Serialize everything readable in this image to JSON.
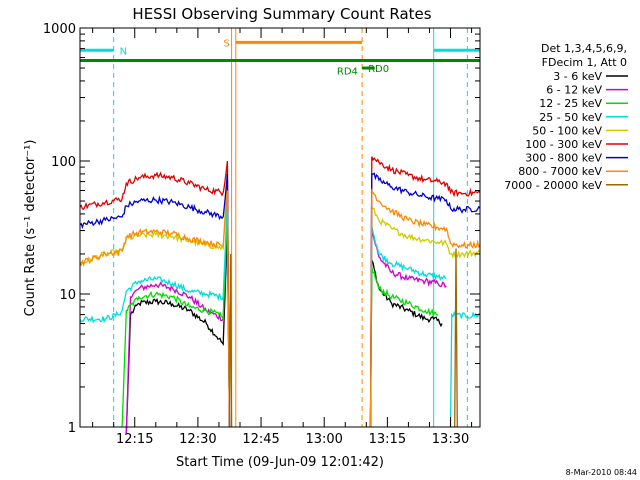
{
  "chart_data": {
    "type": "line",
    "title": "HESSI Observing Summary Count Rates",
    "xlabel": "Start Time (09-Jun-09 12:01:42)",
    "ylabel": "Count Rate (s⁻¹ detector⁻¹)",
    "xlim": [
      "12:02",
      "13:37"
    ],
    "x_ticks": [
      "12:15",
      "12:30",
      "12:45",
      "13:00",
      "13:15",
      "13:30"
    ],
    "ylim": [
      1,
      1000
    ],
    "y_scale": "log",
    "y_ticks": [
      "1",
      "10",
      "100",
      "1000"
    ],
    "legend_header": [
      "Det 1,3,4,5,6,9,",
      "FDecim 1, Att 0"
    ],
    "legend_position": "right",
    "timestamp": "8-Mar-2010 08:44",
    "series": [
      {
        "name": "3 - 6 keV",
        "color": "#000000",
        "segments": [
          [
            [
              "12:13",
              0.9
            ],
            [
              "12:14",
              7
            ],
            [
              "12:16",
              8.5
            ],
            [
              "12:20",
              8.8
            ],
            [
              "12:24",
              8.4
            ],
            [
              "12:28",
              7.5
            ],
            [
              "12:32",
              6
            ],
            [
              "12:35",
              4.6
            ],
            [
              "12:36",
              4.2
            ],
            [
              "12:37",
              30
            ],
            [
              "12:37.5",
              1
            ]
          ],
          [
            [
              "13:11",
              1
            ],
            [
              "13:11.3",
              18
            ],
            [
              "13:13",
              11
            ],
            [
              "13:16",
              8.5
            ],
            [
              "13:20",
              7.5
            ],
            [
              "13:24",
              6.5
            ],
            [
              "13:26",
              6.5
            ],
            [
              "13:28",
              6
            ]
          ]
        ]
      },
      {
        "name": "6 - 12 keV",
        "color": "#cc00cc",
        "segments": [
          [
            [
              "12:13",
              0.9
            ],
            [
              "12:14",
              9.5
            ],
            [
              "12:16",
              11
            ],
            [
              "12:20",
              11.8
            ],
            [
              "12:24",
              11
            ],
            [
              "12:28",
              9.5
            ],
            [
              "12:32",
              7.5
            ],
            [
              "12:36",
              6.5
            ],
            [
              "12:37",
              45
            ],
            [
              "12:37.5",
              1
            ]
          ],
          [
            [
              "13:11",
              1
            ],
            [
              "13:11.3",
              30
            ],
            [
              "13:13",
              19
            ],
            [
              "13:16",
              14.5
            ],
            [
              "13:20",
              13
            ],
            [
              "13:24",
              12.5
            ],
            [
              "13:27",
              12
            ],
            [
              "13:29",
              11.5
            ]
          ]
        ]
      },
      {
        "name": "12 - 25 keV",
        "color": "#00dd00",
        "segments": [
          [
            [
              "12:12",
              1
            ],
            [
              "12:13",
              7.5
            ],
            [
              "12:16",
              9.5
            ],
            [
              "12:20",
              10
            ],
            [
              "12:24",
              9.5
            ],
            [
              "12:28",
              8
            ],
            [
              "12:32",
              7.5
            ],
            [
              "12:35",
              7
            ],
            [
              "12:36",
              6.5
            ],
            [
              "12:37",
              40
            ],
            [
              "12:37.5",
              1
            ]
          ],
          [
            [
              "13:11",
              1
            ],
            [
              "13:11.3",
              16
            ],
            [
              "13:13",
              11
            ],
            [
              "13:16",
              9.5
            ],
            [
              "13:20",
              8.5
            ],
            [
              "13:24",
              7.5
            ],
            [
              "13:27",
              7
            ]
          ]
        ]
      },
      {
        "name": "25 - 50 keV",
        "color": "#00dddd",
        "segments": [
          [
            [
              "12:02",
              6.5
            ],
            [
              "12:08",
              6.5
            ],
            [
              "12:11",
              7
            ],
            [
              "12:12",
              7.5
            ],
            [
              "12:13",
              10.5
            ],
            [
              "12:16",
              12.5
            ],
            [
              "12:20",
              13
            ],
            [
              "12:24",
              12
            ],
            [
              "12:28",
              10.5
            ],
            [
              "12:32",
              10
            ],
            [
              "12:36",
              9.5
            ],
            [
              "12:37",
              50
            ],
            [
              "12:37.5",
              1
            ]
          ],
          [
            [
              "13:11",
              1
            ],
            [
              "13:11.3",
              32
            ],
            [
              "13:13",
              20
            ],
            [
              "13:16",
              17
            ],
            [
              "13:20",
              15.5
            ],
            [
              "13:24",
              14
            ],
            [
              "13:27",
              13.5
            ],
            [
              "13:29",
              13
            ]
          ],
          [
            [
              "13:30",
              1
            ],
            [
              "13:30.3",
              7
            ],
            [
              "13:34",
              6.8
            ],
            [
              "13:37",
              7
            ]
          ]
        ]
      },
      {
        "name": "50 - 100 keV",
        "color": "#cccc00",
        "segments": [
          [
            [
              "12:02",
              17
            ],
            [
              "12:08",
              20
            ],
            [
              "12:12",
              21
            ],
            [
              "12:13",
              26
            ],
            [
              "12:16",
              27.5
            ],
            [
              "12:20",
              28
            ],
            [
              "12:24",
              27
            ],
            [
              "12:28",
              25
            ],
            [
              "12:32",
              23.5
            ],
            [
              "12:36",
              22
            ],
            [
              "12:37",
              80
            ],
            [
              "12:37.5",
              1
            ]
          ],
          [
            [
              "13:11",
              1
            ],
            [
              "13:11.3",
              45
            ],
            [
              "13:13",
              36
            ],
            [
              "13:16",
              31
            ],
            [
              "13:20",
              27
            ],
            [
              "13:24",
              25.5
            ],
            [
              "13:27",
              24.5
            ],
            [
              "13:29",
              24
            ],
            [
              "13:30",
              20
            ],
            [
              "13:33",
              20
            ],
            [
              "13:37",
              20.5
            ]
          ]
        ]
      },
      {
        "name": "100 - 300 keV",
        "color": "#dd0000",
        "segments": [
          [
            [
              "12:02",
              45
            ],
            [
              "12:08",
              49
            ],
            [
              "12:12",
              52
            ],
            [
              "12:13",
              68
            ],
            [
              "12:16",
              75
            ],
            [
              "12:20",
              78
            ],
            [
              "12:24",
              75
            ],
            [
              "12:28",
              68
            ],
            [
              "12:32",
              61
            ],
            [
              "12:36",
              58
            ],
            [
              "12:37",
              100
            ],
            [
              "12:37.5",
              1
            ]
          ],
          [
            [
              "13:11",
              1
            ],
            [
              "13:11.3",
              108
            ],
            [
              "13:13",
              98
            ],
            [
              "13:16",
              86
            ],
            [
              "13:20",
              78
            ],
            [
              "13:24",
              72
            ],
            [
              "13:27",
              70
            ],
            [
              "13:29",
              68
            ],
            [
              "13:30",
              58
            ],
            [
              "13:33",
              57
            ],
            [
              "13:37",
              58
            ]
          ]
        ]
      },
      {
        "name": "300 - 800 keV",
        "color": "#0000cc",
        "segments": [
          [
            [
              "12:02",
              33
            ],
            [
              "12:08",
              36
            ],
            [
              "12:12",
              38
            ],
            [
              "12:13",
              46
            ],
            [
              "12:16",
              50
            ],
            [
              "12:20",
              51
            ],
            [
              "12:24",
              49
            ],
            [
              "12:28",
              45
            ],
            [
              "12:32",
              41
            ],
            [
              "12:36",
              38
            ],
            [
              "12:37",
              80
            ],
            [
              "12:37.5",
              1
            ]
          ],
          [
            [
              "13:11",
              1
            ],
            [
              "13:11.3",
              80
            ],
            [
              "13:13",
              72
            ],
            [
              "13:16",
              64
            ],
            [
              "13:20",
              58
            ],
            [
              "13:24",
              54
            ],
            [
              "13:27",
              52
            ],
            [
              "13:29",
              51
            ],
            [
              "13:30",
              44
            ],
            [
              "13:33",
              43
            ],
            [
              "13:37",
              44
            ]
          ]
        ]
      },
      {
        "name": "800 - 7000 keV",
        "color": "#ff8800",
        "segments": [
          [
            [
              "12:02",
              17
            ],
            [
              "12:08",
              20
            ],
            [
              "12:12",
              21
            ],
            [
              "12:13",
              27
            ],
            [
              "12:16",
              29
            ],
            [
              "12:20",
              29.5
            ],
            [
              "12:24",
              28.5
            ],
            [
              "12:28",
              26
            ],
            [
              "12:32",
              24.5
            ],
            [
              "12:36",
              23
            ],
            [
              "12:37",
              60
            ],
            [
              "12:37.5",
              1
            ]
          ],
          [
            [
              "13:11",
              1
            ],
            [
              "13:11.3",
              60
            ],
            [
              "13:13",
              50
            ],
            [
              "13:16",
              42
            ],
            [
              "13:20",
              36
            ],
            [
              "13:24",
              33
            ],
            [
              "13:27",
              31.5
            ],
            [
              "13:29",
              31
            ],
            [
              "13:30",
              24
            ],
            [
              "13:33",
              23
            ],
            [
              "13:37",
              23.5
            ]
          ]
        ]
      },
      {
        "name": "7000 - 20000 keV",
        "color": "#996600",
        "segments": [
          [
            [
              "12:37.5",
              1
            ],
            [
              "12:37.8",
              20
            ],
            [
              "12:38",
              1
            ]
          ],
          [
            [
              "13:31",
              1
            ],
            [
              "13:31.3",
              22
            ],
            [
              "13:31.6",
              1
            ]
          ]
        ]
      }
    ],
    "markers": [
      {
        "label": "N",
        "color": "#00dddd",
        "bar_level": 680,
        "segments": [
          [
            "12:02",
            "12:10"
          ],
          [
            "13:26",
            "13:37"
          ]
        ],
        "solid_lines": [
          "13:26"
        ],
        "dashed_lines": [
          "12:10",
          "13:34"
        ]
      },
      {
        "label": "S",
        "color": "#ff8800",
        "bar_level": 780,
        "segments": [
          [
            "12:39",
            "13:09"
          ]
        ],
        "solid_lines": [
          "12:38",
          "12:39"
        ],
        "dashed_lines": [
          "13:09"
        ]
      },
      {
        "label": "RD4",
        "color": "#008800",
        "bar_level": 570,
        "segments": [
          [
            "12:02",
            "13:37"
          ]
        ],
        "solid_lines": [],
        "dashed_lines": []
      },
      {
        "label": "RD0",
        "color": "#008800",
        "bar_level": 500,
        "segments": [
          [
            "13:09",
            "13:12"
          ]
        ],
        "solid_lines": [],
        "dashed_lines": []
      }
    ]
  }
}
